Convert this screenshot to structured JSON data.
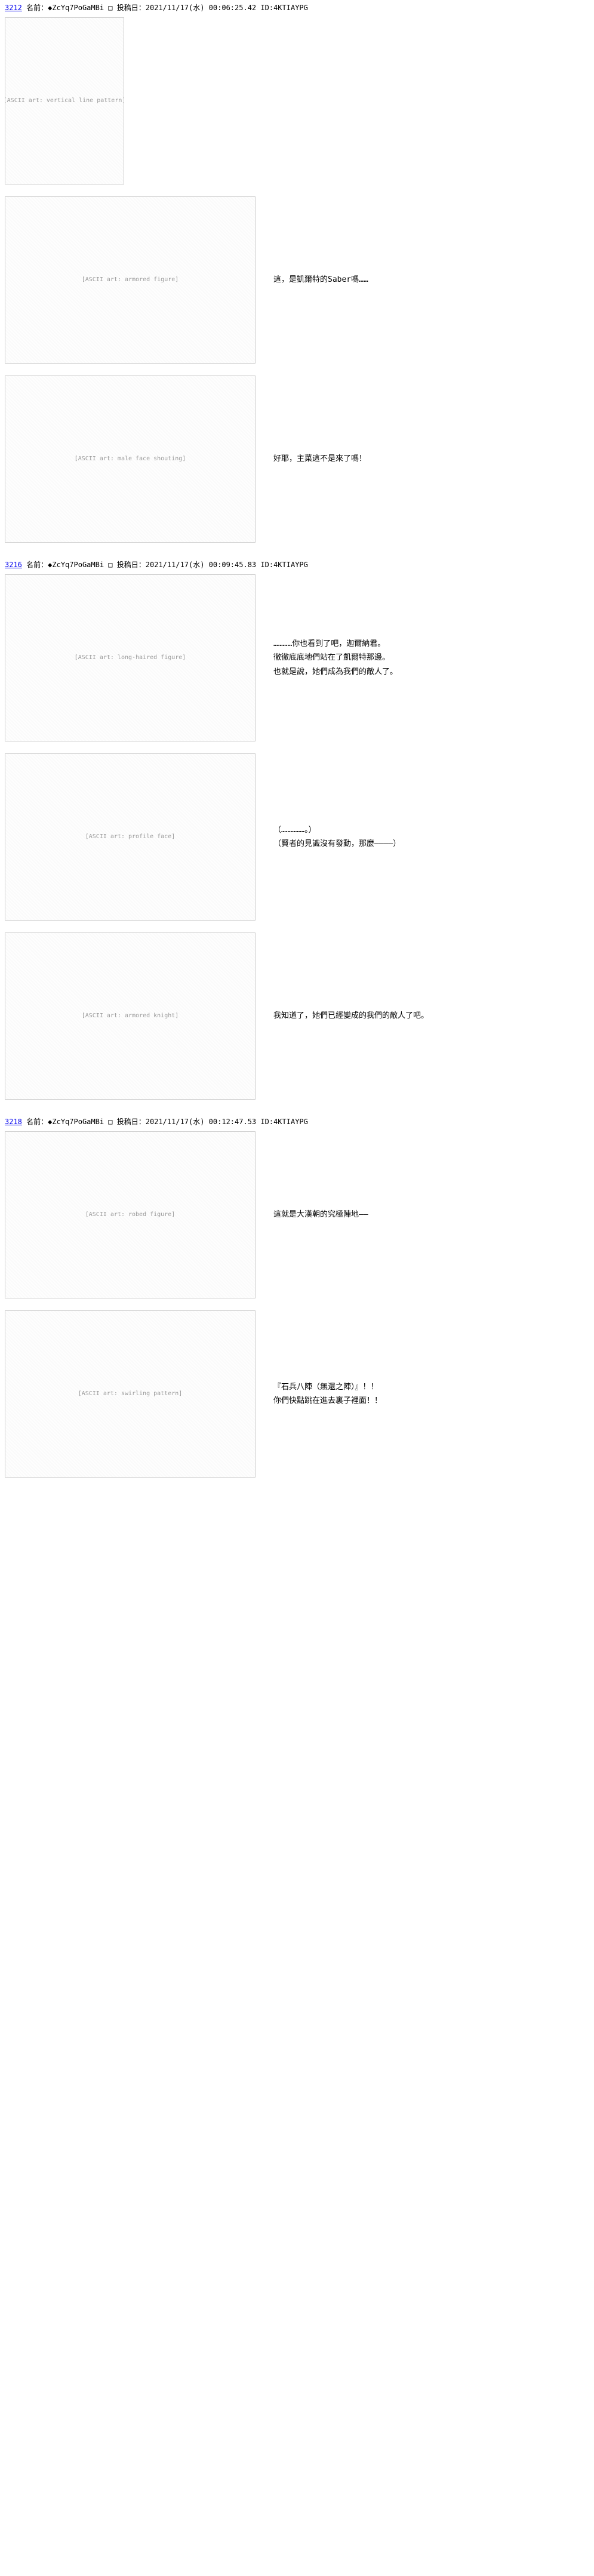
{
  "posts": [
    {
      "num": "3212",
      "nameLabel": "名前：",
      "trip": "◆ZcYq7PoGaMBi",
      "dateLabel": "投稿日：",
      "date": "2021/11/17(水) 00:06:25.42",
      "idLabel": "ID:",
      "id": "4KTIAYPG",
      "blocks": [
        {
          "aa": "aa-vertical-lines",
          "aaLabel": "[ASCII art: vertical line pattern]",
          "dialogue": "",
          "small": true
        },
        {
          "aa": "aa-saber",
          "aaLabel": "[ASCII art: armored figure]",
          "dialogue": "這，是凱爾特的Saber嗎……"
        },
        {
          "aa": "aa-face1",
          "aaLabel": "[ASCII art: male face shouting]",
          "dialogue": "好耶，主菜這不是來了嗎！"
        }
      ]
    },
    {
      "num": "3216",
      "nameLabel": "名前：",
      "trip": "◆ZcYq7PoGaMBi",
      "dateLabel": "投稿日：",
      "date": "2021/11/17(水) 00:09:45.83",
      "idLabel": "ID:",
      "id": "4KTIAYPG",
      "blocks": [
        {
          "aa": "aa-longhair",
          "aaLabel": "[ASCII art: long-haired figure]",
          "dialogue": "…………你也看到了吧，迦爾納君。\n徹徹底底地們站在了凱爾特那邊。\n也就是說，她們成為我們的敵人了。"
        },
        {
          "aa": "aa-face2",
          "aaLabel": "[ASCII art: profile face]",
          "dialogue": "（……………。）\n（賢者的見識沒有發動，那麼————）"
        },
        {
          "aa": "aa-knight",
          "aaLabel": "[ASCII art: armored knight]",
          "dialogue": "我知道了，她們已經變成的我們的敵人了吧。"
        }
      ]
    },
    {
      "num": "3218",
      "nameLabel": "名前：",
      "trip": "◆ZcYq7PoGaMBi",
      "dateLabel": "投稿日：",
      "date": "2021/11/17(水) 00:12:47.53",
      "idLabel": "ID:",
      "id": "4KTIAYPG",
      "blocks": [
        {
          "aa": "aa-kongming",
          "aaLabel": "[ASCII art: robed figure]",
          "dialogue": "這就是大漢朝的究極陣地——"
        },
        {
          "aa": "aa-swirl",
          "aaLabel": "[ASCII art: swirling pattern]",
          "dialogue": "『石兵八陣（無還之陣）』！！\n你們快點跳在進去裏子裡面！！"
        }
      ]
    }
  ]
}
